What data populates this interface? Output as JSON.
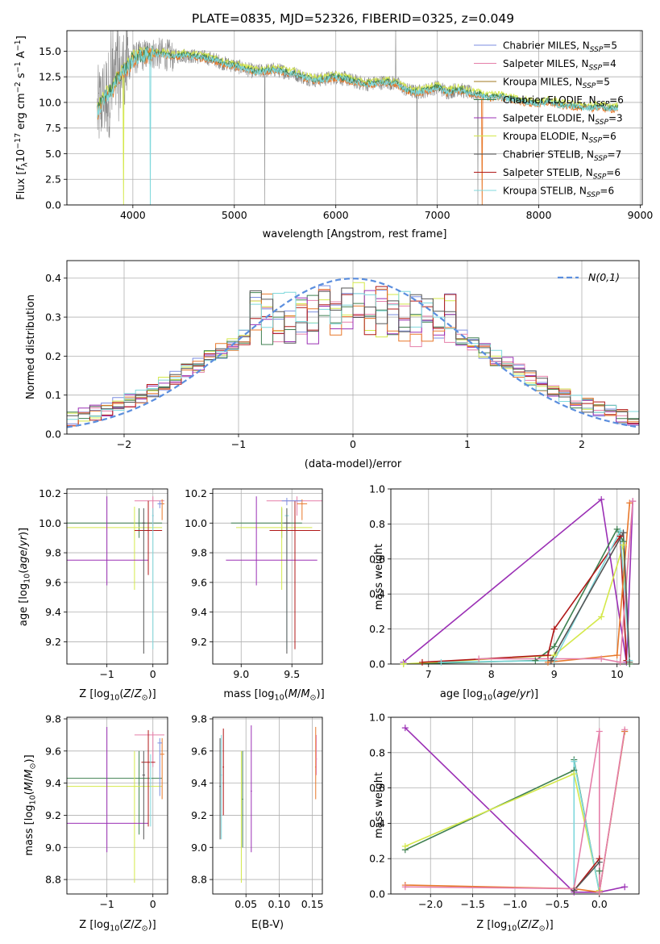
{
  "title": "PLATE=0835, MJD=52326, FIBERID=0325, z=0.049",
  "colors": {
    "chabrier_miles": "#7b8ee0",
    "salpeter_miles": "#e57fa9",
    "kroupa_miles": "#a07820",
    "chabrier_elodie": "#3f8050",
    "salpeter_elodie": "#9b30b5",
    "kroupa_elodie": "#d4e84a",
    "chabrier_stelib": "#555555",
    "salpeter_stelib": "#b01818",
    "kroupa_stelib": "#7fd8dc",
    "orange": "#e8782a",
    "normal_curve": "#5b8ede",
    "grid": "#b0b0b0",
    "data_gray": "#888888"
  },
  "chart_data": [
    {
      "id": "spectrum",
      "type": "line",
      "xlabel": "wavelength [Angstrom, rest frame]",
      "ylabel": "Flux [f_λ 10^-17 erg cm^-2 s^-1 A^-1]",
      "xlim": [
        3350,
        9020
      ],
      "ylim": [
        0,
        17
      ],
      "xticks": [
        4000,
        5000,
        6000,
        7000,
        8000,
        9000
      ],
      "yticks": [
        0.0,
        2.5,
        5.0,
        7.5,
        10.0,
        12.5,
        15.0
      ],
      "legend_position": "top-right",
      "series": [
        {
          "name": "Chabrier MILES",
          "n_ssp": "5"
        },
        {
          "name": "Salpeter MILES",
          "n_ssp": "4"
        },
        {
          "name": "Kroupa MILES",
          "n_ssp": "5"
        },
        {
          "name": "Chabrier ELODIE",
          "n_ssp": "6"
        },
        {
          "name": "Salpeter ELODIE",
          "n_ssp": "3"
        },
        {
          "name": "Kroupa ELODIE",
          "n_ssp": "6"
        },
        {
          "name": "Chabrier STELIB",
          "n_ssp": "7"
        },
        {
          "name": "Salpeter STELIB",
          "n_ssp": "6"
        },
        {
          "name": "Kroupa STELIB",
          "n_ssp": "6"
        }
      ],
      "continuum": {
        "x": [
          3650,
          3700,
          3750,
          3800,
          3850,
          3900,
          3950,
          4000,
          4100,
          4200,
          4300,
          4400,
          4500,
          4600,
          4700,
          4800,
          4900,
          5000,
          5100,
          5200,
          5300,
          5400,
          5500,
          5600,
          5700,
          5800,
          5900,
          6000,
          6100,
          6200,
          6300,
          6400,
          6500,
          6600,
          6700,
          6800,
          6900,
          7000,
          7100,
          7200,
          7300,
          7400,
          7500,
          7600,
          7700,
          7800,
          7900,
          8000,
          8100,
          8200,
          8300,
          8400,
          8500,
          8600,
          8700,
          8780
        ],
        "y": [
          9.0,
          10.2,
          10.8,
          11.2,
          12.5,
          13.0,
          13.5,
          14.2,
          14.6,
          14.8,
          14.7,
          14.5,
          14.6,
          14.5,
          14.4,
          14.2,
          13.8,
          13.6,
          13.3,
          13.0,
          13.1,
          13.2,
          13.0,
          12.8,
          12.4,
          12.2,
          12.3,
          12.5,
          12.3,
          12.0,
          11.8,
          11.9,
          12.0,
          11.8,
          11.2,
          11.0,
          11.2,
          11.5,
          11.0,
          11.3,
          11.0,
          10.8,
          10.5,
          10.6,
          10.4,
          10.2,
          10.0,
          9.9,
          10.1,
          9.8,
          9.7,
          9.6,
          9.5,
          9.6,
          9.4,
          9.5
        ]
      }
    },
    {
      "id": "residuals",
      "type": "bar",
      "xlabel": "(data-model)/error",
      "ylabel": "Normed distribution",
      "xlim": [
        -2.5,
        2.5
      ],
      "ylim": [
        0,
        0.445
      ],
      "xticks": [
        -2,
        -1,
        0,
        1,
        2
      ],
      "yticks": [
        0.0,
        0.1,
        0.2,
        0.3,
        0.4
      ],
      "legend_position": "top-right",
      "legend_label": "N(0,1)",
      "bin_width": 0.1
    },
    {
      "id": "age_vs_z",
      "type": "scatter",
      "xlabel": "Z [log10(Z/Z⊙)]",
      "ylabel": "age  [log10(age/yr)]",
      "xlim": [
        -1.87,
        0.32
      ],
      "ylim": [
        9.05,
        10.23
      ],
      "xticks": [
        -1,
        0
      ],
      "yticks": [
        9.2,
        9.4,
        9.6,
        9.8,
        10.0,
        10.2
      ]
    },
    {
      "id": "age_vs_mass",
      "type": "scatter",
      "xlabel": "mass [log10(M/M⊙)]",
      "ylabel": "",
      "xlim": [
        8.72,
        9.8
      ],
      "ylim": [
        9.05,
        10.23
      ],
      "xticks": [
        9.0,
        9.5
      ],
      "yticks": [
        9.2,
        9.4,
        9.6,
        9.8,
        10.0,
        10.2
      ]
    },
    {
      "id": "weight_vs_age",
      "type": "line",
      "xlabel": "age  [log10(age/yr)]",
      "ylabel": "mass weight",
      "xlim": [
        6.4,
        10.35
      ],
      "ylim": [
        0,
        1
      ],
      "xticks": [
        7,
        8,
        9,
        10
      ],
      "yticks": [
        0.0,
        0.2,
        0.4,
        0.6,
        0.8,
        1.0
      ]
    },
    {
      "id": "mass_vs_z",
      "type": "scatter",
      "xlabel": "Z [log10(Z/Z⊙)]",
      "ylabel": "mass [log10(M/M⊙)]",
      "xlim": [
        -1.87,
        0.32
      ],
      "ylim": [
        8.71,
        9.81
      ],
      "xticks": [
        -1,
        0
      ],
      "yticks": [
        8.8,
        9.0,
        9.2,
        9.4,
        9.6,
        9.8
      ]
    },
    {
      "id": "mass_vs_ebv",
      "type": "scatter",
      "xlabel": "E(B-V)",
      "ylabel": "",
      "xlim": [
        0.0,
        0.165
      ],
      "ylim": [
        8.71,
        9.81
      ],
      "xticks": [
        0.05,
        0.1,
        0.15
      ],
      "yticks": [
        8.8,
        9.0,
        9.2,
        9.4,
        9.6,
        9.8
      ]
    },
    {
      "id": "weight_vs_z",
      "type": "line",
      "xlabel": "Z [log10(Z/Z⊙)]",
      "ylabel": "mass weight",
      "xlim": [
        -2.47,
        0.47
      ],
      "ylim": [
        0,
        1
      ],
      "xticks": [
        -2.0,
        -1.5,
        -1.0,
        -0.5,
        0.0
      ],
      "yticks": [
        0.0,
        0.2,
        0.4,
        0.6,
        0.8,
        1.0
      ]
    }
  ]
}
